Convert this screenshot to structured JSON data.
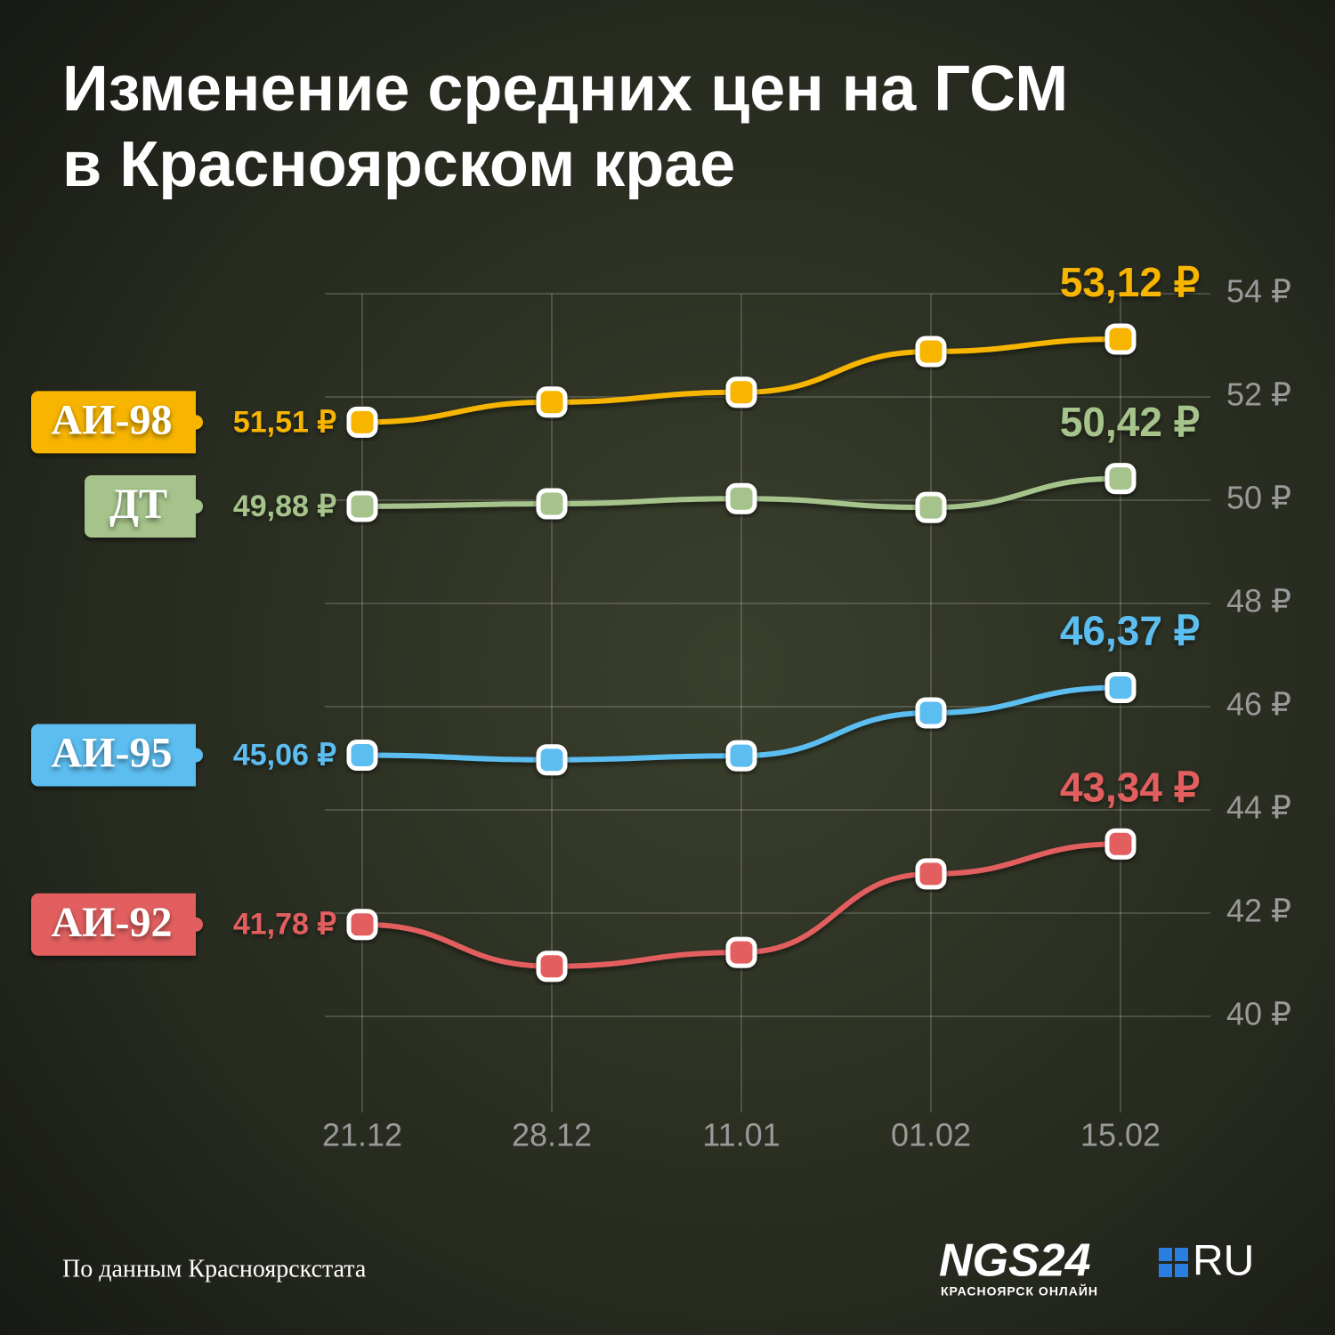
{
  "chart_data": {
    "type": "line",
    "title": [
      "Изменение средних цен на ГСМ",
      "в Красноярском крае"
    ],
    "categories": [
      "21.12",
      "28.12",
      "11.01",
      "01.02",
      "15.02"
    ],
    "series": [
      {
        "name": "АИ-98",
        "color": "#f7b500",
        "values": [
          51.51,
          51.9,
          52.09,
          52.88,
          53.12
        ],
        "value_labels": [
          "51,51 ₽",
          null,
          null,
          null,
          "53,12 ₽"
        ]
      },
      {
        "name": "ДТ",
        "color": "#a5c38a",
        "values": [
          49.88,
          49.93,
          50.03,
          49.86,
          50.42
        ],
        "value_labels": [
          "49,88 ₽",
          null,
          null,
          null,
          "50,42 ₽"
        ]
      },
      {
        "name": "АИ-95",
        "color": "#5bbdf0",
        "values": [
          45.06,
          44.97,
          45.05,
          45.88,
          46.37
        ],
        "value_labels": [
          "45,06 ₽",
          null,
          null,
          null,
          "46,37 ₽"
        ]
      },
      {
        "name": "АИ-92",
        "color": "#e35f5f",
        "values": [
          41.78,
          40.97,
          41.24,
          42.76,
          43.34
        ],
        "value_labels": [
          "41,78 ₽",
          null,
          null,
          null,
          "43,34 ₽"
        ]
      }
    ],
    "ylim": [
      38,
      54
    ],
    "yticks": [
      {
        "value": 40,
        "label": "40 ₽"
      },
      {
        "value": 42,
        "label": "42 ₽"
      },
      {
        "value": 44,
        "label": "44 ₽"
      },
      {
        "value": 46,
        "label": "46 ₽"
      },
      {
        "value": 48,
        "label": "48 ₽"
      },
      {
        "value": 50,
        "label": "50 ₽"
      },
      {
        "value": 52,
        "label": "52 ₽"
      },
      {
        "value": 54,
        "label": "54 ₽"
      }
    ],
    "grid": true,
    "source": "По данным Красноярскстата",
    "logo": {
      "name": "NGS24",
      "domain": "RU",
      "tagline": "КРАСНОЯРСК ОНЛАЙН"
    }
  }
}
